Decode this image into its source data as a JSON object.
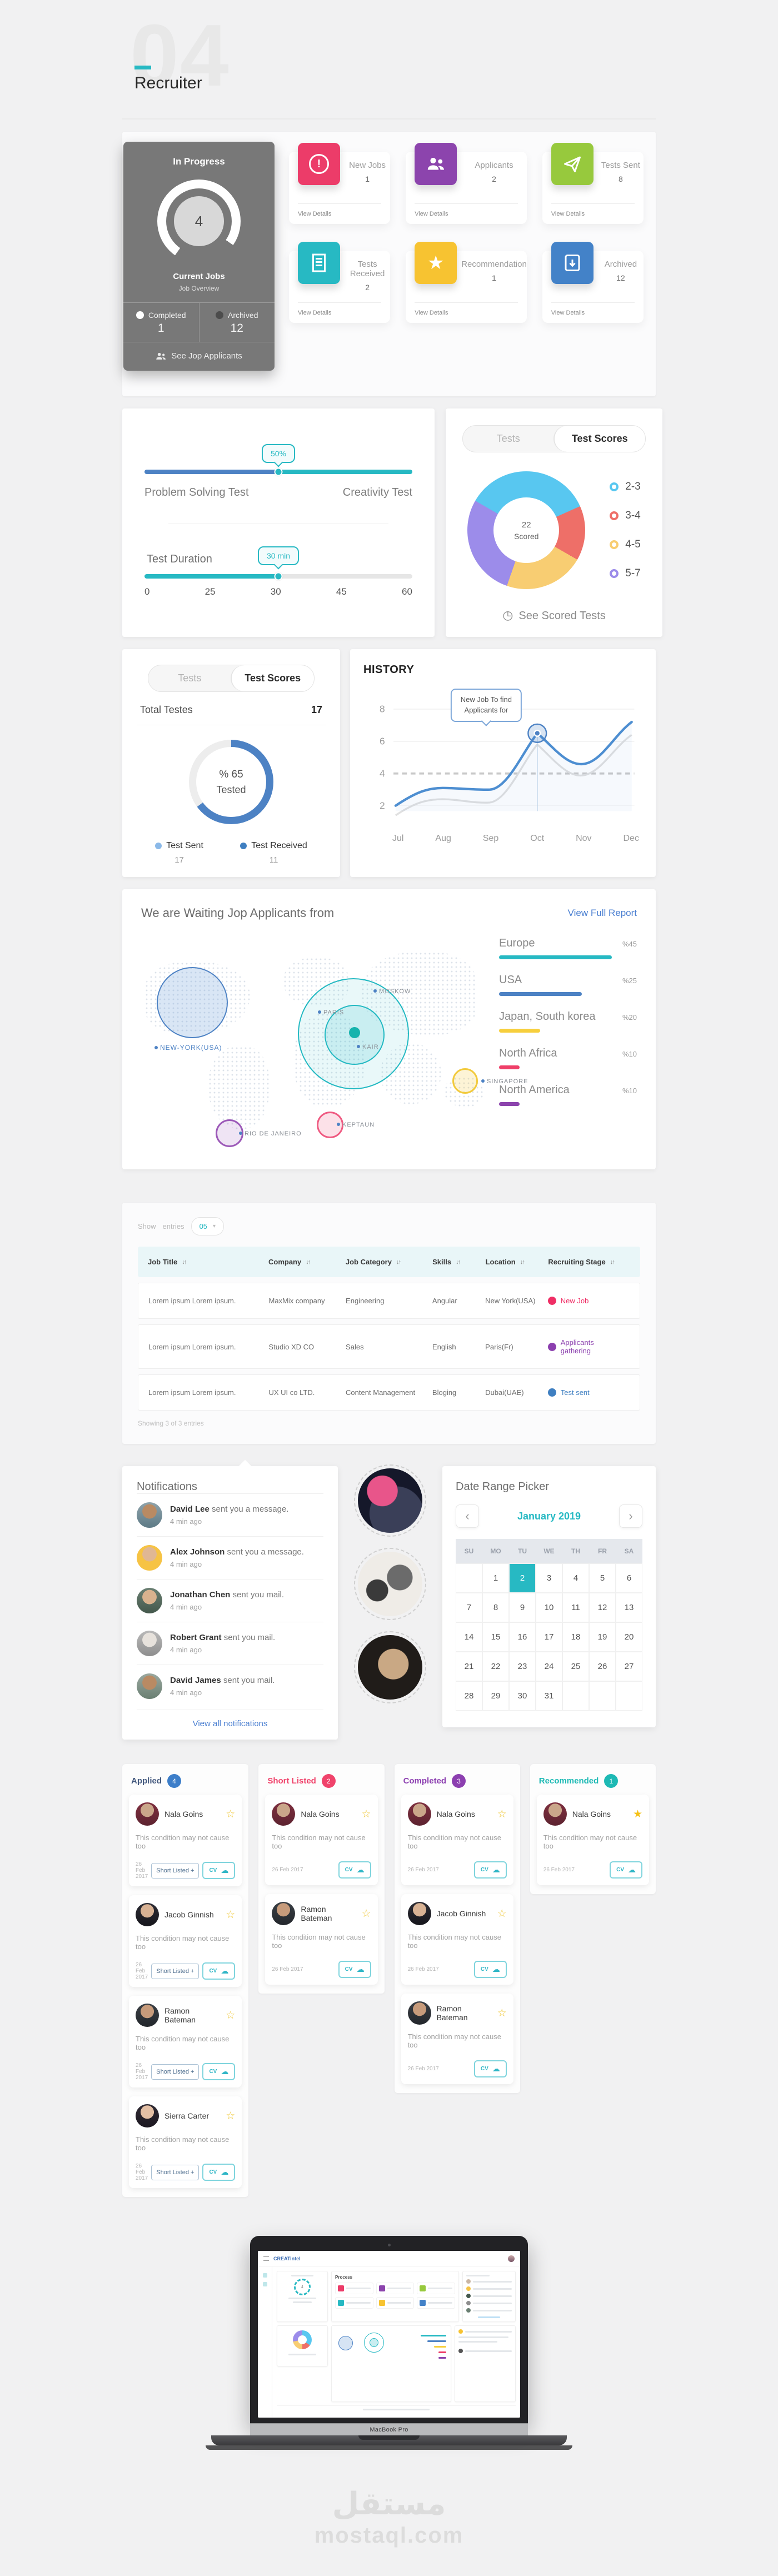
{
  "page": {
    "number": "04",
    "title": "Recruiter"
  },
  "icons": {
    "sort": "↓↑",
    "chevron_left": "‹",
    "chevron_right": "›",
    "star_filled": "★",
    "star_outline": "☆",
    "cloud_download": "☁",
    "clock": "◷",
    "exclamation": "!",
    "caret_down": "▾"
  },
  "theme": {
    "accent_teal": "#27b9c3",
    "accent_blue": "#4d82c4",
    "pink": "#ed3c69",
    "purple": "#8c44ad",
    "green": "#97c93d",
    "yellow": "#f7c331",
    "archive_blue": "#4382c8",
    "dark_card": "#787878",
    "link_blue": "#4a7fd1",
    "d_cyan": "#58c7f0",
    "d_red": "#ee6f68",
    "d_yellow": "#f8cd72",
    "d_purple": "#9c8cea"
  },
  "in_progress": {
    "title": "In Progress",
    "count": "4",
    "center_label": "Current Jobs",
    "sublabel": "Job Overview",
    "completed_label": "Completed",
    "completed_value": "1",
    "archived_label": "Archived",
    "archived_value": "12",
    "cta": "See Jop Applicants"
  },
  "stat_cards": [
    {
      "label": "New Jobs",
      "value": "1",
      "link": "View Details",
      "color": "#ec3c69",
      "icon": "alert-seal-icon"
    },
    {
      "label": "Applicants",
      "value": "2",
      "link": "View Details",
      "color": "#8c44ad",
      "icon": "people-icon"
    },
    {
      "label": "Tests Sent",
      "value": "8",
      "link": "View Details",
      "color": "#97c93d",
      "icon": "paper-plane-icon"
    },
    {
      "label": "Tests Received",
      "value": "2",
      "link": "View Details",
      "color": "#27b9c3",
      "icon": "document-icon"
    },
    {
      "label": "Recommendation",
      "value": "1",
      "link": "View Details",
      "color": "#f7c331",
      "icon": "star-icon"
    },
    {
      "label": "Archived",
      "value": "12",
      "link": "View Details",
      "color": "#4382c8",
      "icon": "archive-icon"
    }
  ],
  "test_config": {
    "slider1": {
      "tooltip": "50%",
      "left_label": "Problem Solving Test",
      "right_label": "Creativity Test",
      "value_percent": 50
    },
    "slider2": {
      "label": "Test Duration",
      "tooltip": "30 min",
      "ticks": [
        "0",
        "25",
        "30",
        "45",
        "60"
      ],
      "value": 30
    }
  },
  "score_panel": {
    "tabs": [
      "Tests",
      "Test Scores"
    ],
    "active_tab": "Test Scores",
    "center_value": "22",
    "center_label": "Scored",
    "legend": [
      {
        "label": "2-3",
        "color": "#58c7f0"
      },
      {
        "label": "3-4",
        "color": "#ee6f68"
      },
      {
        "label": "4-5",
        "color": "#f8cd72"
      },
      {
        "label": "5-7",
        "color": "#9c8cea"
      }
    ],
    "cta": "See Scored Tests"
  },
  "tests_panel": {
    "tabs": [
      "Tests",
      "Test Scores"
    ],
    "active_tab": "Test Scores",
    "total_label": "Total Testes",
    "total_value": "17",
    "percent_line1": "% 65",
    "percent_line2": "Tested",
    "legend": [
      {
        "label": "Test Sent",
        "value": "17",
        "color": "#8bb9e8"
      },
      {
        "label": "Test Received",
        "value": "11",
        "color": "#3f7fc1"
      }
    ]
  },
  "history": {
    "title": "HISTORY",
    "tooltip_line1": "New Job To find",
    "tooltip_line2": "Applicants for",
    "yticks": [
      "8",
      "6",
      "4",
      "2"
    ],
    "xticks": [
      "Jul",
      "Aug",
      "Sep",
      "Oct",
      "Nov",
      "Dec"
    ]
  },
  "map_section": {
    "title": "We are Waiting Jop Applicants from",
    "link": "View Full Report",
    "markers": [
      "NEW-YORK(USA)",
      "MOSKOW",
      "PARIS",
      "KAIR",
      "SINGAPORE",
      "KEPTAUN",
      "RIO DE JANEIRO"
    ],
    "stats": [
      {
        "label": "Europe",
        "value": "%45",
        "color": "#27b9c3",
        "width": 82
      },
      {
        "label": "USA",
        "value": "%25",
        "color": "#4d82c4",
        "width": 60
      },
      {
        "label": "Japan, South korea",
        "value": "%20",
        "color": "#f7cf3d",
        "width": 30
      },
      {
        "label": "North Africa",
        "value": "%10",
        "color": "#ef3f68",
        "width": 15
      },
      {
        "label": "North America",
        "value": "%10",
        "color": "#8c44ad",
        "width": 15
      }
    ]
  },
  "jobs_table": {
    "show_label": "Show",
    "entries_label": "entries",
    "page_size": "05",
    "columns": [
      "Job Title",
      "Company",
      "Job Category",
      "Skills",
      "Location",
      "Recruiting Stage"
    ],
    "rows": [
      {
        "title": "Lorem ipsum Lorem ipsum.",
        "company": "MaxMix company",
        "category": "Engineering",
        "skills": "Angular",
        "location": "New York(USA)",
        "stage": "New Job",
        "stage_color": "#ef2e65"
      },
      {
        "title": "Lorem ipsum Lorem ipsum.",
        "company": "Studio XD CO",
        "category": "Sales",
        "skills": "English",
        "location": "Paris(Fr)",
        "stage": "Applicants gathering",
        "stage_color": "#8b3fae"
      },
      {
        "title": "Lorem ipsum Lorem ipsum.",
        "company": "UX UI co LTD.",
        "category": "Content Management",
        "skills": "Bloging",
        "location": "Dubai(UAE)",
        "stage": "Test sent",
        "stage_color": "#3f7fc1"
      }
    ],
    "footer": "Showing 3 of 3 entries"
  },
  "notifications": {
    "title": "Notifications",
    "items": [
      {
        "name": "David Lee",
        "action": "sent you a message.",
        "time": "4 min ago"
      },
      {
        "name": "Alex Johnson",
        "action": "sent you a message.",
        "time": "4 min ago"
      },
      {
        "name": "Jonathan Chen",
        "action": "sent you mail.",
        "time": "4 min ago"
      },
      {
        "name": "Robert Grant",
        "action": "sent you mail.",
        "time": "4 min ago"
      },
      {
        "name": "David James",
        "action": "sent you mail.",
        "time": "4 min ago"
      }
    ],
    "link": "View all notifications"
  },
  "date_picker": {
    "title": "Date Range Picker",
    "month": "January 2019",
    "day_names": [
      "SU",
      "MO",
      "TU",
      "WE",
      "TH",
      "FR",
      "SA"
    ],
    "weeks": [
      [
        "",
        "1",
        "2",
        "3",
        "4",
        "5",
        "6"
      ],
      [
        "7",
        "8",
        "9",
        "10",
        "11",
        "12",
        "13"
      ],
      [
        "14",
        "15",
        "16",
        "17",
        "18",
        "19",
        "20"
      ],
      [
        "21",
        "22",
        "23",
        "24",
        "25",
        "26",
        "27"
      ],
      [
        "28",
        "29",
        "30",
        "31",
        "",
        "",
        ""
      ]
    ],
    "selected_day": "2"
  },
  "kanban": {
    "card_text": "This condition may not cause too",
    "date": "26 Feb 2017",
    "shortlist_label": "Short Listed +",
    "cv_label": "CV",
    "columns": [
      {
        "title": "Applied",
        "count": "4",
        "color": "#3d7ec9",
        "title_color": "#44597e",
        "cards": [
          {
            "name": "Nala Goins"
          },
          {
            "name": "Jacob Ginnish"
          },
          {
            "name": "Ramon Bateman"
          },
          {
            "name": "Sierra Carter"
          }
        ]
      },
      {
        "title": "Short Listed",
        "count": "2",
        "color": "#f0436b",
        "title_color": "#f0436b",
        "cards": [
          {
            "name": "Nala Goins"
          },
          {
            "name": "Ramon Bateman"
          }
        ]
      },
      {
        "title": "Completed",
        "count": "3",
        "color": "#8c3fb0",
        "title_color": "#8c3fb0",
        "cards": [
          {
            "name": "Nala Goins"
          },
          {
            "name": "Jacob Ginnish"
          },
          {
            "name": "Ramon Bateman"
          }
        ]
      },
      {
        "title": "Recommended",
        "count": "1",
        "color": "#1db9b4",
        "title_color": "#1db9b4",
        "cards": [
          {
            "name": "Nala Goins"
          }
        ]
      }
    ]
  },
  "laptop": {
    "logo": "CREATintel",
    "heading": "Process",
    "brand": "MacBook Pro"
  },
  "watermark": {
    "logo": "مستقل",
    "domain": "mostaql.com"
  },
  "chart_data": [
    {
      "type": "line",
      "title": "HISTORY",
      "x": [
        "Jul",
        "Aug",
        "Sep",
        "Oct",
        "Nov",
        "Dec"
      ],
      "series": [
        {
          "name": "current",
          "color": "#4d8ed1",
          "values": [
            2,
            3.1,
            3,
            6.5,
            4.6,
            7.2
          ]
        },
        {
          "name": "previous",
          "color": "#dcdcdc",
          "values": [
            1.4,
            2.4,
            2,
            5.8,
            4,
            6.4
          ]
        }
      ],
      "ylim": [
        1,
        8
      ],
      "yticks": [
        8,
        6,
        4,
        2
      ],
      "reference_line": 4,
      "grid": true,
      "annotation": {
        "x": "Oct",
        "y": 6.5,
        "text": "New Job To find Applicants for"
      }
    },
    {
      "type": "pie",
      "title": "Test Scores donut",
      "center_value": "22",
      "center_label": "Scored",
      "labels": [
        "2-3",
        "3-4",
        "4-5",
        "5-7"
      ],
      "values": [
        35,
        15,
        22,
        28
      ],
      "colors": [
        "#58c7f0",
        "#ee6f68",
        "#f8cd72",
        "#9c8cea"
      ],
      "legend_position": "right"
    },
    {
      "type": "pie",
      "title": "Tested progress ring",
      "percent_tested": 65,
      "center_text": "% 65 Tested",
      "labels": [
        "Test Sent",
        "Test Received"
      ],
      "values": [
        17,
        11
      ],
      "colors": [
        "#8bb9e8",
        "#3f7fc1"
      ]
    },
    {
      "type": "bar",
      "title": "We are Waiting Jop Applicants from",
      "categories": [
        "Europe",
        "USA",
        "Japan, South korea",
        "North Africa",
        "North America"
      ],
      "values": [
        45,
        25,
        20,
        10,
        10
      ],
      "unit": "percent",
      "colors": [
        "#27b9c3",
        "#4d82c4",
        "#f7cf3d",
        "#ef3f68",
        "#8c44ad"
      ]
    }
  ]
}
